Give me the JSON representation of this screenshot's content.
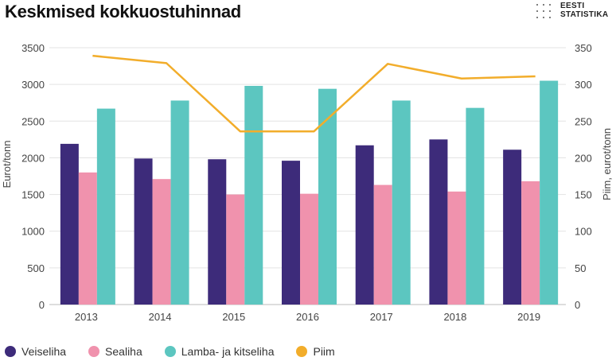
{
  "title": "Keskmised kokkuostuhinnad",
  "logo": {
    "line1": "EESTI",
    "line2": "STATISTIKA"
  },
  "chart_data": {
    "type": "bar",
    "categories": [
      "2013",
      "2014",
      "2015",
      "2016",
      "2017",
      "2018",
      "2019"
    ],
    "series": [
      {
        "name": "Veiseliha",
        "type": "bar",
        "axis": "left",
        "color": "#3d2b7a",
        "values": [
          2190,
          1990,
          1980,
          1960,
          2170,
          2250,
          2110
        ]
      },
      {
        "name": "Sealiha",
        "type": "bar",
        "axis": "left",
        "color": "#f092ad",
        "values": [
          1800,
          1710,
          1500,
          1510,
          1630,
          1540,
          1680
        ]
      },
      {
        "name": "Lamba- ja kitseliha",
        "type": "bar",
        "axis": "left",
        "color": "#5cc6c0",
        "values": [
          2670,
          2780,
          2980,
          2940,
          2780,
          2680,
          3050
        ]
      },
      {
        "name": "Piim",
        "type": "line",
        "axis": "right",
        "color": "#f2ad2b",
        "values": [
          339,
          329,
          236,
          236,
          328,
          308,
          311
        ]
      }
    ],
    "ylabel": "Eurot/tonn",
    "ylim": [
      0,
      3500
    ],
    "yticks": [
      "0",
      "500",
      "1000",
      "1500",
      "2000",
      "2500",
      "3000",
      "3500"
    ],
    "y2label": "Piim, eurot/tonn",
    "y2lim": [
      0,
      350
    ],
    "y2ticks": [
      "0",
      "50",
      "100",
      "150",
      "200",
      "250",
      "300",
      "350"
    ],
    "grid": true,
    "legend_position": "bottom-left"
  }
}
